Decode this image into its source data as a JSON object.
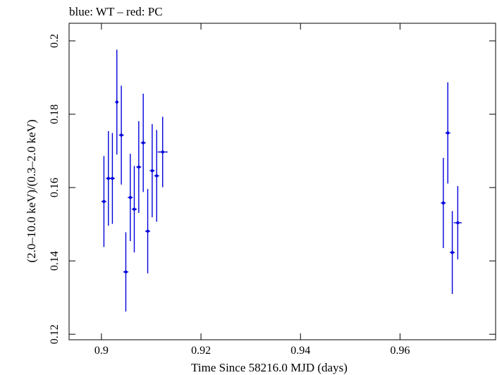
{
  "chart_data": {
    "type": "scatter",
    "title": "blue: WT – red: PC",
    "xlabel": "Time Since 58216.0 MJD (days)",
    "ylabel": "(2.0–10.0 keV)/(0.3–2.0 keV)",
    "xlim": [
      0.8935,
      0.9792
    ],
    "ylim": [
      0.1185,
      0.2048
    ],
    "xticks": [
      "0.9",
      "0.92",
      "0.94",
      "0.96"
    ],
    "yticks": [
      "0.12",
      "0.14",
      "0.16",
      "0.18",
      "0.2"
    ],
    "series": [
      {
        "color": "#0000dd",
        "points": [
          {
            "x": 0.9005,
            "xerr": 0.0005,
            "y": 0.1562,
            "yerr": 0.0124
          },
          {
            "x": 0.9014,
            "xerr": 0.0005,
            "y": 0.1625,
            "yerr": 0.0129
          },
          {
            "x": 0.9022,
            "xerr": 0.0005,
            "y": 0.1625,
            "yerr": 0.0124
          },
          {
            "x": 0.9031,
            "xerr": 0.0003,
            "y": 0.1833,
            "yerr": 0.0143
          },
          {
            "x": 0.904,
            "xerr": 0.0005,
            "y": 0.1743,
            "yerr": 0.0135
          },
          {
            "x": 0.9049,
            "xerr": 0.0005,
            "y": 0.137,
            "yerr": 0.0108
          },
          {
            "x": 0.9058,
            "xerr": 0.0005,
            "y": 0.1573,
            "yerr": 0.0119
          },
          {
            "x": 0.9066,
            "xerr": 0.0005,
            "y": 0.1541,
            "yerr": 0.0118
          },
          {
            "x": 0.9075,
            "xerr": 0.0005,
            "y": 0.1656,
            "yerr": 0.0125
          },
          {
            "x": 0.9084,
            "xerr": 0.0005,
            "y": 0.1722,
            "yerr": 0.0134
          },
          {
            "x": 0.9093,
            "xerr": 0.0005,
            "y": 0.1481,
            "yerr": 0.0115
          },
          {
            "x": 0.9102,
            "xerr": 0.0005,
            "y": 0.1646,
            "yerr": 0.0127
          },
          {
            "x": 0.9111,
            "xerr": 0.0005,
            "y": 0.1632,
            "yerr": 0.0125
          },
          {
            "x": 0.9123,
            "xerr": 0.001,
            "y": 0.1697,
            "yerr": 0.0096
          },
          {
            "x": 0.9687,
            "xerr": 0.0005,
            "y": 0.1558,
            "yerr": 0.0123
          },
          {
            "x": 0.9696,
            "xerr": 0.0005,
            "y": 0.1749,
            "yerr": 0.0138
          },
          {
            "x": 0.9705,
            "xerr": 0.0005,
            "y": 0.1423,
            "yerr": 0.0113
          },
          {
            "x": 0.9716,
            "xerr": 0.0008,
            "y": 0.1504,
            "yerr": 0.01
          }
        ]
      }
    ]
  }
}
